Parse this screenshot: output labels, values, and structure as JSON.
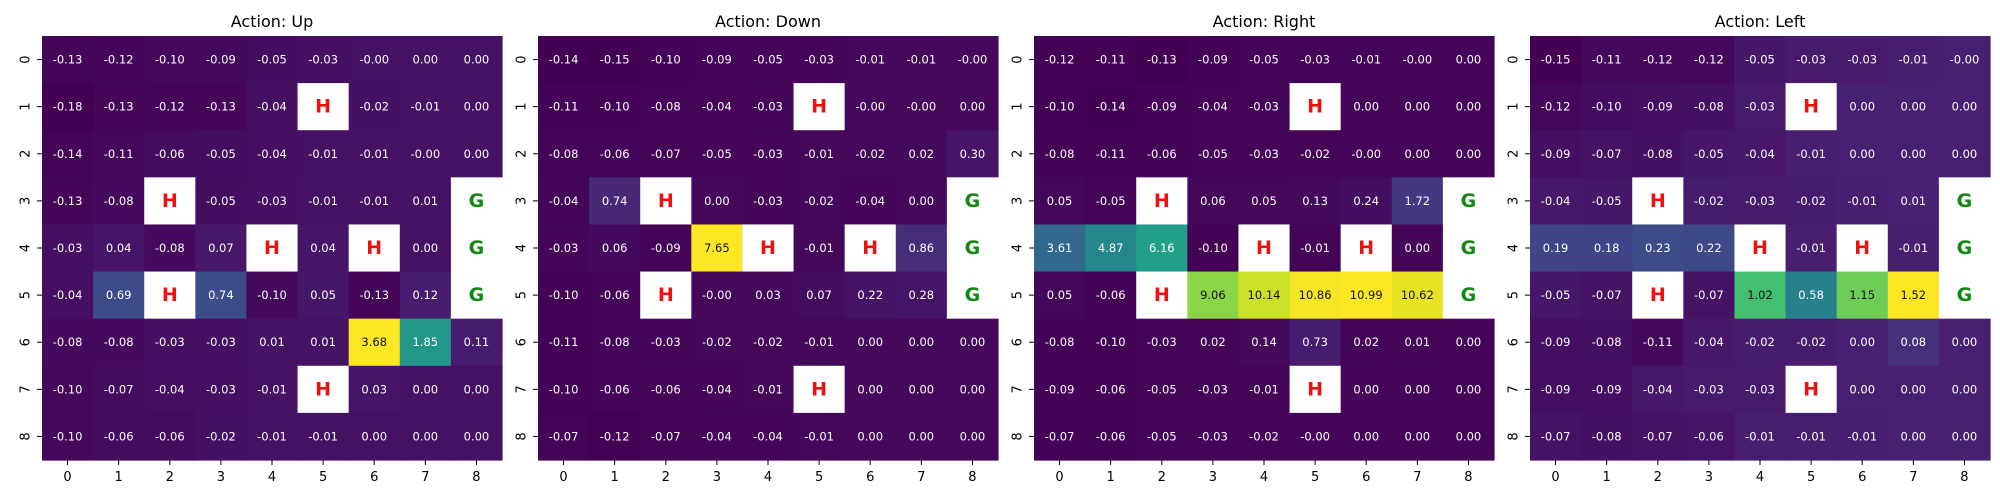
{
  "colors": {
    "hole_text": "#ee1111",
    "goal_text": "#118811",
    "mask_fill": "#ffffff",
    "light_value_text": "#ffffff",
    "dark_value_text": "#111111"
  },
  "chart_data": [
    {
      "type": "heatmap",
      "title": "Action: Up",
      "x_ticks": [
        "0",
        "1",
        "2",
        "3",
        "4",
        "5",
        "6",
        "7",
        "8"
      ],
      "y_ticks": [
        "0",
        "1",
        "2",
        "3",
        "4",
        "5",
        "6",
        "7",
        "8"
      ],
      "values": [
        [
          "-0.13",
          "-0.12",
          "-0.10",
          "-0.09",
          "-0.05",
          "-0.03",
          "-0.00",
          "0.00",
          "0.00"
        ],
        [
          "-0.18",
          "-0.13",
          "-0.12",
          "-0.13",
          "-0.04",
          "H",
          "-0.02",
          "-0.01",
          "0.00"
        ],
        [
          "-0.14",
          "-0.11",
          "-0.06",
          "-0.05",
          "-0.04",
          "-0.01",
          "-0.01",
          "-0.00",
          "0.00"
        ],
        [
          "-0.13",
          "-0.08",
          "H",
          "-0.05",
          "-0.03",
          "-0.01",
          "-0.01",
          "0.01",
          "G"
        ],
        [
          "-0.03",
          "0.04",
          "-0.08",
          "0.07",
          "H",
          "0.04",
          "H",
          "0.00",
          "G"
        ],
        [
          "-0.04",
          "0.69",
          "H",
          "0.74",
          "-0.10",
          "0.05",
          "-0.13",
          "0.12",
          "G"
        ],
        [
          "-0.08",
          "-0.08",
          "-0.03",
          "-0.03",
          "0.01",
          "0.01",
          "3.68",
          "1.85",
          "0.11"
        ],
        [
          "-0.10",
          "-0.07",
          "-0.04",
          "-0.03",
          "-0.01",
          "H",
          "0.03",
          "0.00",
          "0.00"
        ],
        [
          "-0.10",
          "-0.06",
          "-0.06",
          "-0.02",
          "-0.01",
          "-0.01",
          "0.00",
          "0.00",
          "0.00"
        ]
      ]
    },
    {
      "type": "heatmap",
      "title": "Action: Down",
      "x_ticks": [
        "0",
        "1",
        "2",
        "3",
        "4",
        "5",
        "6",
        "7",
        "8"
      ],
      "y_ticks": [
        "0",
        "1",
        "2",
        "3",
        "4",
        "5",
        "6",
        "7",
        "8"
      ],
      "values": [
        [
          "-0.14",
          "-0.15",
          "-0.10",
          "-0.09",
          "-0.05",
          "-0.03",
          "-0.01",
          "-0.01",
          "-0.00"
        ],
        [
          "-0.11",
          "-0.10",
          "-0.08",
          "-0.04",
          "-0.03",
          "H",
          "-0.00",
          "-0.00",
          "0.00"
        ],
        [
          "-0.08",
          "-0.06",
          "-0.07",
          "-0.05",
          "-0.03",
          "-0.01",
          "-0.02",
          "0.02",
          "0.30"
        ],
        [
          "-0.04",
          "0.74",
          "H",
          "0.00",
          "-0.03",
          "-0.02",
          "-0.04",
          "0.00",
          "G"
        ],
        [
          "-0.03",
          "0.06",
          "-0.09",
          "7.65",
          "H",
          "-0.01",
          "H",
          "0.86",
          "G"
        ],
        [
          "-0.10",
          "-0.06",
          "H",
          "-0.00",
          "0.03",
          "0.07",
          "0.22",
          "0.28",
          "G"
        ],
        [
          "-0.11",
          "-0.08",
          "-0.03",
          "-0.02",
          "-0.02",
          "-0.01",
          "0.00",
          "0.00",
          "0.00"
        ],
        [
          "-0.10",
          "-0.06",
          "-0.06",
          "-0.04",
          "-0.01",
          "H",
          "0.00",
          "0.00",
          "0.00"
        ],
        [
          "-0.07",
          "-0.12",
          "-0.07",
          "-0.04",
          "-0.04",
          "-0.01",
          "0.00",
          "0.00",
          "0.00"
        ]
      ]
    },
    {
      "type": "heatmap",
      "title": "Action: Right",
      "x_ticks": [
        "0",
        "1",
        "2",
        "3",
        "4",
        "5",
        "6",
        "7",
        "8"
      ],
      "y_ticks": [
        "0",
        "1",
        "2",
        "3",
        "4",
        "5",
        "6",
        "7",
        "8"
      ],
      "values": [
        [
          "-0.12",
          "-0.11",
          "-0.13",
          "-0.09",
          "-0.05",
          "-0.03",
          "-0.01",
          "-0.00",
          "0.00"
        ],
        [
          "-0.10",
          "-0.14",
          "-0.09",
          "-0.04",
          "-0.03",
          "H",
          "0.00",
          "0.00",
          "0.00"
        ],
        [
          "-0.08",
          "-0.11",
          "-0.06",
          "-0.05",
          "-0.03",
          "-0.02",
          "-0.00",
          "0.00",
          "0.00"
        ],
        [
          "0.05",
          "-0.05",
          "H",
          "0.06",
          "0.05",
          "0.13",
          "0.24",
          "1.72",
          "G"
        ],
        [
          "3.61",
          "4.87",
          "6.16",
          "-0.10",
          "H",
          "-0.01",
          "H",
          "0.00",
          "G"
        ],
        [
          "0.05",
          "-0.06",
          "H",
          "9.06",
          "10.14",
          "10.86",
          "10.99",
          "10.62",
          "G"
        ],
        [
          "-0.08",
          "-0.10",
          "-0.03",
          "0.02",
          "0.14",
          "0.73",
          "0.02",
          "0.01",
          "0.00"
        ],
        [
          "-0.09",
          "-0.06",
          "-0.05",
          "-0.03",
          "-0.01",
          "H",
          "0.00",
          "0.00",
          "0.00"
        ],
        [
          "-0.07",
          "-0.06",
          "-0.05",
          "-0.03",
          "-0.02",
          "-0.00",
          "0.00",
          "0.00",
          "0.00"
        ]
      ]
    },
    {
      "type": "heatmap",
      "title": "Action: Left",
      "x_ticks": [
        "0",
        "1",
        "2",
        "3",
        "4",
        "5",
        "6",
        "7",
        "8"
      ],
      "y_ticks": [
        "0",
        "1",
        "2",
        "3",
        "4",
        "5",
        "6",
        "7",
        "8"
      ],
      "values": [
        [
          "-0.15",
          "-0.11",
          "-0.12",
          "-0.12",
          "-0.05",
          "-0.03",
          "-0.03",
          "-0.01",
          "-0.00"
        ],
        [
          "-0.12",
          "-0.10",
          "-0.09",
          "-0.08",
          "-0.03",
          "H",
          "0.00",
          "0.00",
          "0.00"
        ],
        [
          "-0.09",
          "-0.07",
          "-0.08",
          "-0.05",
          "-0.04",
          "-0.01",
          "0.00",
          "0.00",
          "0.00"
        ],
        [
          "-0.04",
          "-0.05",
          "H",
          "-0.02",
          "-0.03",
          "-0.02",
          "-0.01",
          "0.01",
          "G"
        ],
        [
          "0.19",
          "0.18",
          "0.23",
          "0.22",
          "H",
          "-0.01",
          "H",
          "-0.01",
          "G"
        ],
        [
          "-0.05",
          "-0.07",
          "H",
          "-0.07",
          "1.02",
          "0.58",
          "1.15",
          "1.52",
          "G"
        ],
        [
          "-0.09",
          "-0.08",
          "-0.11",
          "-0.04",
          "-0.02",
          "-0.02",
          "0.00",
          "0.08",
          "0.00"
        ],
        [
          "-0.09",
          "-0.09",
          "-0.04",
          "-0.03",
          "-0.03",
          "H",
          "0.00",
          "0.00",
          "0.00"
        ],
        [
          "-0.07",
          "-0.08",
          "-0.07",
          "-0.06",
          "-0.01",
          "-0.01",
          "-0.01",
          "0.00",
          "0.00"
        ]
      ]
    }
  ]
}
